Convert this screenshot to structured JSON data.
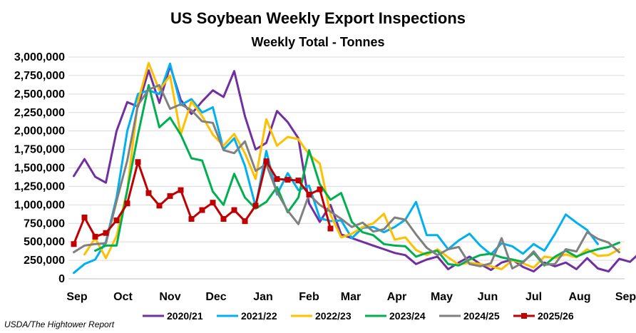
{
  "chart_data": {
    "type": "line",
    "title": "US Soybean Weekly Export Inspections",
    "subtitle": "Weekly Total - Tonnes",
    "source": "USDA/The Hightower Report",
    "xlabel": "",
    "ylabel": "",
    "ylim": [
      0,
      3000000
    ],
    "y_ticks": [
      0,
      250000,
      500000,
      750000,
      1000000,
      1250000,
      1500000,
      1750000,
      2000000,
      2250000,
      2500000,
      2750000,
      3000000
    ],
    "y_tick_labels": [
      "0",
      "250,000",
      "500,000",
      "750,000",
      "1,000,000",
      "1,250,000",
      "1,500,000",
      "1,750,000",
      "2,000,000",
      "2,250,000",
      "2,500,000",
      "2,750,000",
      "3,000,000"
    ],
    "x_unit": "week",
    "x_range": [
      0,
      52
    ],
    "x_tick_labels": [
      {
        "x": 0,
        "label": "Sep"
      },
      {
        "x": 4.3,
        "label": "Oct"
      },
      {
        "x": 8.7,
        "label": "Nov"
      },
      {
        "x": 13.0,
        "label": "Dec"
      },
      {
        "x": 17.4,
        "label": "Jan"
      },
      {
        "x": 21.7,
        "label": "Feb"
      },
      {
        "x": 25.6,
        "label": "Mar"
      },
      {
        "x": 29.9,
        "label": "Apr"
      },
      {
        "x": 34.1,
        "label": "May"
      },
      {
        "x": 38.4,
        "label": "Jun"
      },
      {
        "x": 42.7,
        "label": "Jul"
      },
      {
        "x": 47.0,
        "label": "Aug"
      },
      {
        "x": 51.3,
        "label": "Sep"
      }
    ],
    "grid": true,
    "legend_position": "bottom",
    "series": [
      {
        "name": "2020/21",
        "color": "#7030a0",
        "marker": false,
        "x_start": 0.5,
        "values": [
          1390000,
          1620000,
          1380000,
          1300000,
          2000000,
          2390000,
          2330000,
          2820000,
          2380000,
          2880000,
          2420000,
          2230000,
          2400000,
          2550000,
          2460000,
          2810000,
          2200000,
          1750000,
          1840000,
          2270000,
          2120000,
          1900000,
          1020000,
          770000,
          1000000,
          600000,
          550000,
          500000,
          450000,
          400000,
          350000,
          320000,
          200000,
          260000,
          300000,
          130000,
          220000,
          300000,
          200000,
          120000,
          220000,
          260000,
          160000,
          100000,
          220000,
          170000,
          220000,
          130000,
          280000,
          140000,
          100000,
          270000,
          230000,
          360000
        ]
      },
      {
        "name": "2021/22",
        "color": "#00b0f0",
        "marker": false,
        "x_start": 0.5,
        "values": [
          80000,
          200000,
          260000,
          500000,
          1100000,
          2000000,
          2500000,
          2550000,
          2500000,
          2910000,
          2350000,
          2430000,
          2250000,
          2320000,
          1750000,
          1900000,
          1530000,
          980000,
          1730000,
          1140000,
          1430000,
          1200000,
          1260000,
          820000,
          780000,
          790000,
          550000,
          690000,
          700000,
          630000,
          700000,
          800000,
          1040000,
          590000,
          590000,
          400000,
          520000,
          610000,
          450000,
          330000,
          480000,
          440000,
          340000,
          470000,
          380000,
          610000,
          870000,
          760000,
          660000,
          470000
        ]
      },
      {
        "name": "2022/23",
        "color": "#ffc000",
        "marker": false,
        "x_start": 1.5,
        "values": [
          330000,
          550000,
          280000,
          580000,
          1200000,
          2400000,
          2920000,
          2550000,
          2750000,
          1950000,
          2400000,
          2200000,
          1950000,
          1800000,
          1960000,
          1700000,
          1350000,
          2160000,
          1800000,
          1920000,
          1890000,
          1680000,
          1560000,
          870000,
          560000,
          610000,
          700000,
          750000,
          880000,
          530000,
          560000,
          390000,
          320000,
          400000,
          290000,
          190000,
          220000,
          200000,
          170000,
          130000,
          250000,
          210000,
          150000,
          300000,
          280000,
          330000,
          290000,
          400000,
          310000,
          320000,
          400000
        ]
      },
      {
        "name": "2023/24",
        "color": "#00b050",
        "marker": false,
        "x_start": 2.5,
        "values": [
          380000,
          450000,
          450000,
          1200000,
          1950000,
          2620000,
          2050000,
          2180000,
          1950000,
          1630000,
          1600000,
          1180000,
          1000000,
          1420000,
          1100000,
          950000,
          1040000,
          1240000,
          900000,
          1100000,
          1740000,
          1280000,
          1070000,
          1160000,
          770000,
          630000,
          590000,
          470000,
          450000,
          440000,
          300000,
          350000,
          380000,
          200000,
          180000,
          260000,
          320000,
          340000,
          290000,
          260000,
          230000,
          350000,
          180000,
          300000,
          380000,
          300000,
          360000,
          400000,
          430000,
          490000
        ]
      },
      {
        "name": "2024/25",
        "color": "#808080",
        "marker": false,
        "x_start": 0.5,
        "values": [
          360000,
          450000,
          470000,
          480000,
          1050000,
          1600000,
          2350000,
          2560000,
          2620000,
          2300000,
          2360000,
          2280000,
          2130000,
          2110000,
          1740000,
          1700000,
          1860000,
          1460000,
          1550000,
          1170000,
          920000,
          740000,
          1140000,
          1000000,
          910000,
          810000,
          700000,
          760000,
          640000,
          670000,
          830000,
          800000,
          600000,
          420000,
          320000,
          400000,
          430000,
          200000,
          170000,
          210000,
          550000,
          140000,
          220000,
          370000,
          190000,
          200000,
          400000,
          370000,
          630000,
          540000,
          490000,
          360000
        ]
      },
      {
        "name": "2025/26",
        "color": "#c00000",
        "marker": true,
        "x_start": 0.5,
        "values": [
          470000,
          830000,
          570000,
          620000,
          790000,
          1020000,
          1580000,
          1160000,
          990000,
          1120000,
          1200000,
          810000,
          930000,
          1030000,
          810000,
          930000,
          780000,
          990000,
          1590000,
          1350000,
          1340000,
          1330000,
          1140000,
          1210000,
          680000
        ]
      }
    ]
  }
}
